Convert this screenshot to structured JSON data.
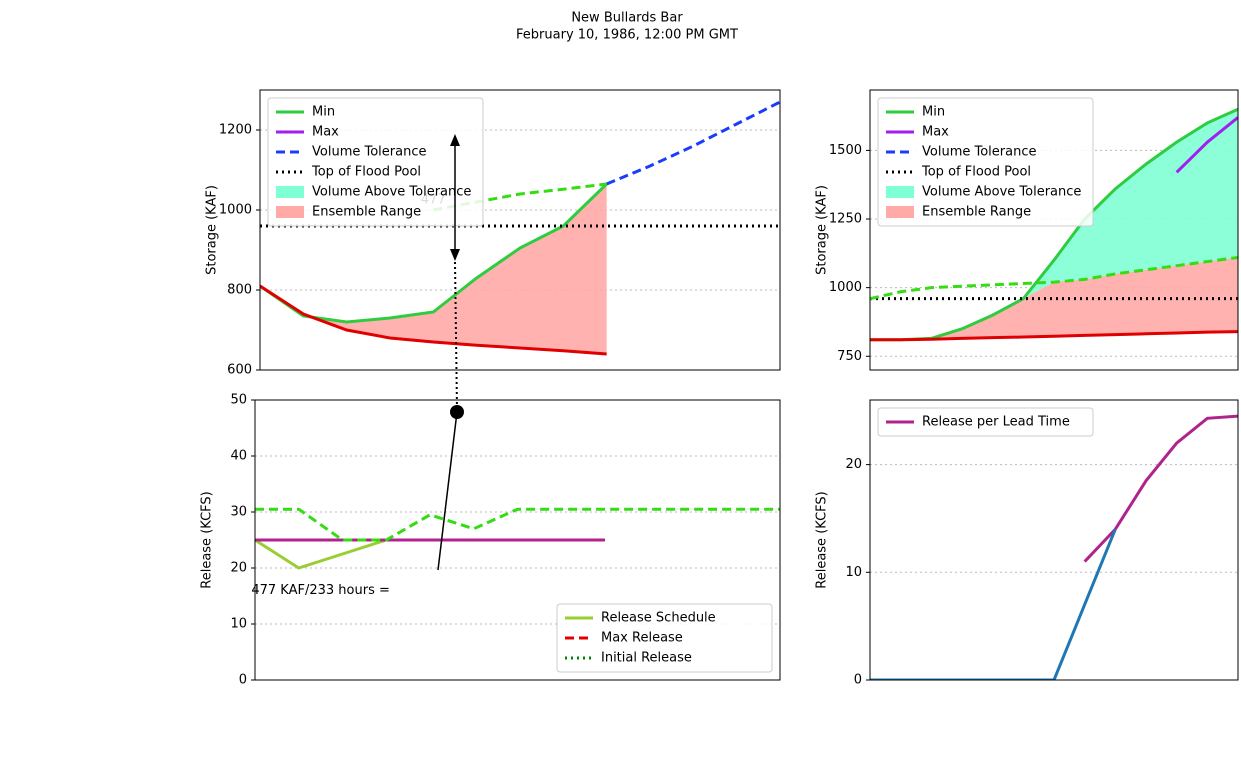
{
  "title": "New Bullards Bar",
  "subtitle": "February 10, 1986, 12:00 PM GMT",
  "chart_data": [
    {
      "type": "line",
      "ylabel": "Storage (KAF)",
      "xlim": [
        0,
        240
      ],
      "ylim": [
        600,
        1300
      ],
      "yticks": [
        600,
        800,
        1000,
        1200
      ],
      "grid": true,
      "legend": "upper left",
      "x": [
        0,
        20,
        40,
        60,
        80,
        100,
        120,
        140,
        160,
        180,
        200,
        220,
        240
      ],
      "areas": [
        {
          "name": "Volume Above Tolerance",
          "color": "#7fffd4",
          "values": [
            null,
            null,
            null,
            null,
            null,
            null,
            null,
            null,
            null,
            null,
            null,
            null,
            null
          ],
          "base": [
            null,
            null,
            null,
            null,
            null,
            null,
            null,
            null,
            null,
            null,
            null,
            null,
            null
          ]
        },
        {
          "name": "Ensemble Range",
          "color": "#ffaaa6",
          "values": [
            810,
            735,
            720,
            730,
            745,
            830,
            905,
            960,
            1065,
            null,
            null,
            null,
            null
          ],
          "base": [
            810,
            740,
            700,
            680,
            670,
            662,
            655,
            648,
            640,
            null,
            null,
            null,
            null
          ]
        }
      ],
      "series": [
        {
          "name": "Min",
          "color": "#2ecc40",
          "style": "solid",
          "values": [
            810,
            735,
            720,
            730,
            745,
            830,
            905,
            960,
            1065,
            null,
            null,
            null,
            null
          ]
        },
        {
          "name": "Max",
          "color": "#a020f0",
          "style": "solid",
          "values": [
            null,
            null,
            null,
            null,
            null,
            null,
            null,
            null,
            null,
            null,
            null,
            null,
            null
          ]
        },
        {
          "name": "Volume Tolerance",
          "color": "#1a3cff",
          "style": "dashed",
          "values": [
            null,
            null,
            null,
            null,
            null,
            null,
            null,
            null,
            1065,
            1110,
            1160,
            1215,
            1270
          ]
        },
        {
          "name": "Top of Flood Pool",
          "color": "#000000",
          "style": "dotted",
          "values": [
            960,
            960,
            960,
            960,
            960,
            960,
            960,
            960,
            960,
            960,
            960,
            960,
            960
          ]
        },
        {
          "color": "#e00000",
          "style": "solid",
          "values": [
            810,
            740,
            700,
            680,
            670,
            662,
            655,
            648,
            640,
            null,
            null,
            null,
            null
          ]
        },
        {
          "color": "#33dd11",
          "style": "dashed",
          "values": [
            null,
            null,
            null,
            null,
            1000,
            1020,
            1040,
            1052,
            1065,
            null,
            null,
            null,
            null
          ]
        }
      ],
      "annotations": [
        {
          "text": "477",
          "x": 80,
          "y": 1025
        }
      ]
    },
    {
      "type": "line",
      "ylabel": "Storage (KAF)",
      "xlim": [
        0,
        240
      ],
      "ylim": [
        700,
        1720
      ],
      "yticks": [
        750,
        1000,
        1250,
        1500
      ],
      "grid": true,
      "legend": "upper left",
      "x": [
        0,
        20,
        40,
        60,
        80,
        100,
        120,
        140,
        160,
        180,
        200,
        220,
        240
      ],
      "areas": [
        {
          "name": "Volume Above Tolerance",
          "color": "#7fffd4",
          "values": [
            810,
            810,
            815,
            850,
            900,
            960,
            1100,
            1250,
            1360,
            1450,
            1530,
            1600,
            1650
          ],
          "base": [
            810,
            810,
            815,
            850,
            900,
            960,
            1020,
            1030,
            1050,
            1065,
            1080,
            1095,
            1110
          ]
        },
        {
          "name": "Ensemble Range",
          "color": "#ffaaa6",
          "values": [
            810,
            810,
            815,
            850,
            900,
            960,
            1020,
            1030,
            1050,
            1065,
            1080,
            1095,
            1110
          ],
          "base": [
            810,
            810,
            812,
            815,
            818,
            820,
            823,
            826,
            829,
            832,
            835,
            838,
            840
          ]
        }
      ],
      "series": [
        {
          "name": "Min",
          "color": "#2ecc40",
          "style": "solid",
          "values": [
            810,
            810,
            815,
            850,
            900,
            960,
            1100,
            1250,
            1360,
            1450,
            1530,
            1600,
            1650
          ]
        },
        {
          "name": "Max",
          "color": "#a020f0",
          "style": "solid",
          "values": [
            null,
            null,
            null,
            null,
            null,
            null,
            null,
            null,
            null,
            null,
            1420,
            1530,
            1620
          ]
        },
        {
          "name": "Volume Tolerance",
          "color": "#1a3cff",
          "style": "dashed",
          "values": [
            null,
            null,
            null,
            null,
            null,
            null,
            null,
            null,
            null,
            null,
            null,
            null,
            null
          ]
        },
        {
          "name": "Top of Flood Pool",
          "color": "#000000",
          "style": "dotted",
          "values": [
            960,
            960,
            960,
            960,
            960,
            960,
            960,
            960,
            960,
            960,
            960,
            960,
            960
          ]
        },
        {
          "color": "#e00000",
          "style": "solid",
          "values": [
            810,
            810,
            812,
            815,
            818,
            820,
            823,
            826,
            829,
            832,
            835,
            838,
            840
          ]
        },
        {
          "color": "#33dd11",
          "style": "dashed",
          "values": [
            960,
            985,
            1000,
            1005,
            1010,
            1015,
            1020,
            1030,
            1050,
            1065,
            1080,
            1095,
            1110
          ]
        }
      ]
    },
    {
      "type": "line",
      "ylabel": "Release (KCFS)",
      "xlim": [
        0,
        240
      ],
      "ylim": [
        0,
        50
      ],
      "yticks": [
        0,
        10,
        20,
        30,
        40,
        50
      ],
      "grid": true,
      "legend": "lower right",
      "x": [
        0,
        20,
        40,
        60,
        80,
        100,
        120,
        140,
        160,
        180,
        200,
        220,
        240
      ],
      "series": [
        {
          "name": "Release Schedule",
          "color": "#9acd32",
          "style": "solid",
          "values": [
            25,
            20,
            22.5,
            25,
            25,
            25,
            25,
            25,
            25,
            null,
            null,
            null,
            null
          ]
        },
        {
          "name": "Max Release",
          "color": "#e00000",
          "style": "dashed",
          "values": [
            null,
            null,
            null,
            null,
            null,
            null,
            null,
            null,
            null,
            null,
            null,
            null,
            null
          ]
        },
        {
          "name": "Initial Release",
          "color": "#008000",
          "style": "dotted",
          "values": [
            null,
            null,
            null,
            null,
            null,
            null,
            null,
            null,
            null,
            null,
            null,
            null,
            null
          ]
        },
        {
          "color": "#b0228c",
          "style": "solid",
          "values": [
            25,
            25,
            25,
            25,
            25,
            25,
            25,
            25,
            25,
            null,
            null,
            null,
            null
          ]
        },
        {
          "color": "#33dd11",
          "style": "dashed",
          "values": [
            30.5,
            30.5,
            25,
            25,
            29.5,
            27,
            30.5,
            30.5,
            30.5,
            30.5,
            30.5,
            30.5,
            30.5
          ]
        }
      ],
      "annotations": [
        {
          "text": "477 KAF/233 hours =",
          "x": 30,
          "y": 16
        }
      ]
    },
    {
      "type": "line",
      "ylabel": "Release (KCFS)",
      "xlim": [
        0,
        240
      ],
      "ylim": [
        0,
        26
      ],
      "yticks": [
        0,
        10,
        20
      ],
      "grid": true,
      "legend": "upper left",
      "x": [
        0,
        20,
        40,
        60,
        80,
        100,
        120,
        140,
        160,
        180,
        200,
        220,
        240
      ],
      "series": [
        {
          "name": "Release per Lead Time",
          "color": "#b0228c",
          "style": "solid",
          "values": [
            null,
            null,
            null,
            null,
            null,
            null,
            null,
            11,
            14,
            18.5,
            22,
            24.3,
            24.5
          ]
        },
        {
          "color": "#1f77b4",
          "style": "solid",
          "values": [
            0,
            0,
            0,
            0,
            0,
            0,
            0,
            7,
            14,
            null,
            null,
            null,
            null
          ]
        }
      ]
    }
  ]
}
